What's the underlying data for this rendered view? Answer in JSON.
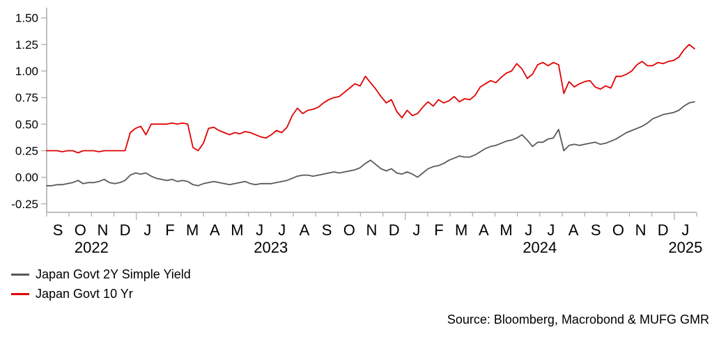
{
  "source_note": "Source: Bloomberg, Macrobond & MUFG GMR",
  "colors": {
    "red_line": "#e00000",
    "gray_line": "#595959",
    "axis": "#a9a9a9",
    "text": "#000000",
    "background": "#ffffff"
  },
  "chart_data": {
    "type": "line",
    "title": "",
    "xlabel": "",
    "ylabel": "",
    "grid": false,
    "legend_position": "bottom-left",
    "ylim": [
      -0.33,
      1.59
    ],
    "y_ticks": [
      {
        "label": "1.50",
        "value": 1.5
      },
      {
        "label": "1.25",
        "value": 1.25
      },
      {
        "label": "1.00",
        "value": 1.0
      },
      {
        "label": "0.75",
        "value": 0.75
      },
      {
        "label": "0.50",
        "value": 0.5
      },
      {
        "label": "0.25",
        "value": 0.25
      },
      {
        "label": "0.00",
        "value": 0.0
      },
      {
        "label": "-0.25",
        "value": -0.25
      }
    ],
    "x_axis": {
      "months_total": 29,
      "data_span_months": 28.9,
      "month_labels": [
        "S",
        "O",
        "N",
        "D",
        "J",
        "F",
        "M",
        "A",
        "M",
        "J",
        "J",
        "A",
        "S",
        "O",
        "N",
        "D",
        "J",
        "F",
        "M",
        "A",
        "M",
        "J",
        "J",
        "A",
        "S",
        "O",
        "N",
        "D",
        "J"
      ],
      "year_spans": [
        {
          "label": "2022",
          "start": 0,
          "end": 4
        },
        {
          "label": "2023",
          "start": 4,
          "end": 16
        },
        {
          "label": "2024",
          "start": 16,
          "end": 28
        },
        {
          "label": "2025",
          "start": 28,
          "end": 29
        }
      ],
      "x_note": "weekly data points, Sep 2022 to late Jan 2025"
    },
    "series": [
      {
        "name": "Japan Govt 2Y Simple Yield",
        "color": "#595959",
        "values": [
          -0.08,
          -0.08,
          -0.07,
          -0.07,
          -0.06,
          -0.05,
          -0.03,
          -0.06,
          -0.05,
          -0.05,
          -0.04,
          -0.02,
          -0.05,
          -0.06,
          -0.05,
          -0.03,
          0.02,
          0.04,
          0.03,
          0.04,
          0.01,
          -0.01,
          -0.02,
          -0.03,
          -0.02,
          -0.04,
          -0.03,
          -0.04,
          -0.07,
          -0.08,
          -0.06,
          -0.05,
          -0.04,
          -0.05,
          -0.06,
          -0.07,
          -0.06,
          -0.05,
          -0.04,
          -0.06,
          -0.07,
          -0.06,
          -0.06,
          -0.06,
          -0.05,
          -0.04,
          -0.03,
          -0.01,
          0.01,
          0.02,
          0.02,
          0.01,
          0.02,
          0.03,
          0.04,
          0.05,
          0.04,
          0.05,
          0.06,
          0.07,
          0.09,
          0.13,
          0.16,
          0.12,
          0.08,
          0.06,
          0.08,
          0.04,
          0.03,
          0.05,
          0.03,
          0.0,
          0.04,
          0.08,
          0.1,
          0.11,
          0.13,
          0.16,
          0.18,
          0.2,
          0.19,
          0.19,
          0.21,
          0.24,
          0.27,
          0.29,
          0.3,
          0.32,
          0.34,
          0.35,
          0.37,
          0.4,
          0.35,
          0.29,
          0.33,
          0.33,
          0.36,
          0.37,
          0.45,
          0.25,
          0.3,
          0.31,
          0.3,
          0.31,
          0.32,
          0.33,
          0.31,
          0.32,
          0.34,
          0.36,
          0.39,
          0.42,
          0.44,
          0.46,
          0.48,
          0.51,
          0.55,
          0.57,
          0.59,
          0.6,
          0.61,
          0.63,
          0.67,
          0.7,
          0.71
        ]
      },
      {
        "name": "Japan Govt 10 Yr",
        "color": "#e00000",
        "values": [
          0.25,
          0.25,
          0.25,
          0.24,
          0.25,
          0.25,
          0.23,
          0.25,
          0.25,
          0.25,
          0.24,
          0.25,
          0.25,
          0.25,
          0.25,
          0.25,
          0.42,
          0.46,
          0.48,
          0.4,
          0.5,
          0.5,
          0.5,
          0.5,
          0.51,
          0.5,
          0.51,
          0.5,
          0.28,
          0.25,
          0.32,
          0.46,
          0.47,
          0.44,
          0.42,
          0.4,
          0.42,
          0.41,
          0.43,
          0.42,
          0.4,
          0.38,
          0.37,
          0.4,
          0.44,
          0.42,
          0.47,
          0.58,
          0.65,
          0.6,
          0.63,
          0.64,
          0.66,
          0.7,
          0.73,
          0.75,
          0.76,
          0.8,
          0.84,
          0.88,
          0.86,
          0.95,
          0.89,
          0.83,
          0.76,
          0.7,
          0.73,
          0.62,
          0.56,
          0.63,
          0.58,
          0.6,
          0.66,
          0.71,
          0.67,
          0.73,
          0.7,
          0.72,
          0.76,
          0.71,
          0.74,
          0.73,
          0.77,
          0.85,
          0.88,
          0.91,
          0.89,
          0.94,
          0.98,
          1.0,
          1.07,
          1.02,
          0.93,
          0.97,
          1.06,
          1.08,
          1.05,
          1.08,
          1.06,
          0.79,
          0.9,
          0.85,
          0.88,
          0.9,
          0.91,
          0.85,
          0.83,
          0.86,
          0.84,
          0.95,
          0.95,
          0.97,
          1.0,
          1.06,
          1.09,
          1.05,
          1.05,
          1.08,
          1.07,
          1.09,
          1.1,
          1.13,
          1.2,
          1.25,
          1.21
        ]
      }
    ]
  }
}
